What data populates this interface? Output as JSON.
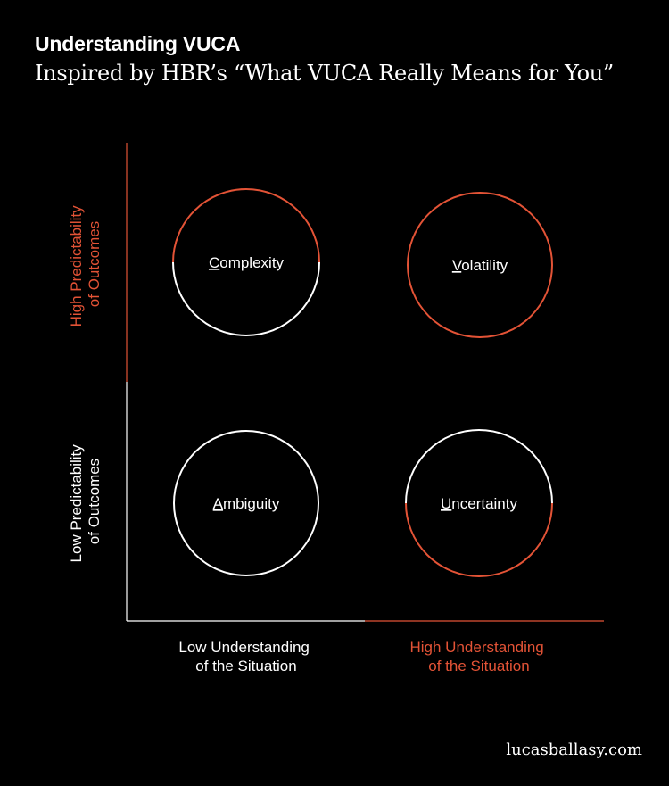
{
  "header": {
    "title": "Understanding VUCA",
    "subtitle": "Inspired by HBR’s “What VUCA Really Means for You”"
  },
  "footer": {
    "site": "lucasballasy.com"
  },
  "colors": {
    "accent": "#e35336",
    "foreground": "#ffffff",
    "background": "#000000"
  },
  "y_axis": {
    "high": {
      "line1": "High Predictability",
      "line2": "of Outcomes",
      "color": "#e35336"
    },
    "low": {
      "line1": "Low Predictability",
      "line2": "of Outcomes",
      "color": "#ffffff"
    }
  },
  "x_axis": {
    "low": {
      "line1": "Low Understanding",
      "line2": "of the Situation",
      "color": "#ffffff"
    },
    "high": {
      "line1": "High Understanding",
      "line2": "of the Situation",
      "color": "#e35336"
    }
  },
  "quadrants": [
    {
      "id": "complexity",
      "initial": "C",
      "rest": "omplexity",
      "accent_half": "top"
    },
    {
      "id": "volatility",
      "initial": "V",
      "rest": "olatility",
      "accent_half": "full"
    },
    {
      "id": "ambiguity",
      "initial": "A",
      "rest": "mbiguity",
      "accent_half": "none"
    },
    {
      "id": "uncertainty",
      "initial": "U",
      "rest": "ncertainty",
      "accent_half": "bottom"
    }
  ]
}
